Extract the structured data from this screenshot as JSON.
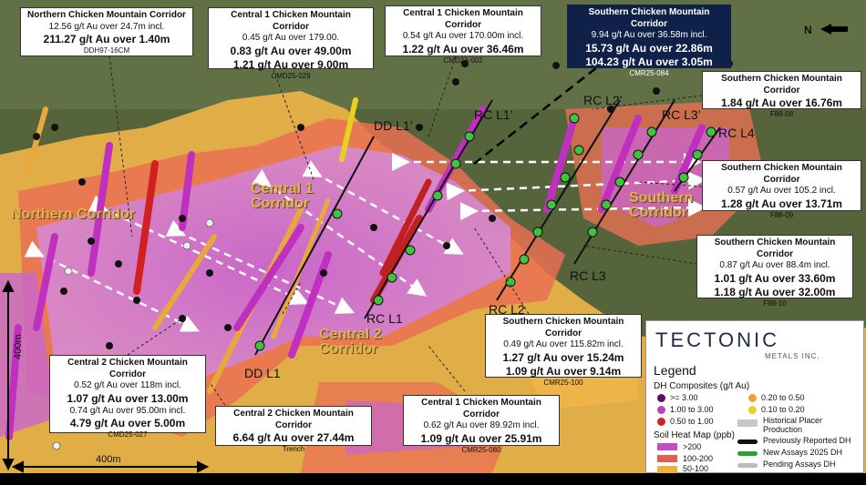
{
  "map": {
    "north_label": "N",
    "scale_vertical_label": "400m",
    "scale_horizontal_label": "400m"
  },
  "zones": {
    "northern": "Northern Corridor",
    "central1": "Central 1 Corridor",
    "central2": "Central 2 Corridor",
    "southern": "Southern Corridor"
  },
  "lines": {
    "dd_l1": "DD L1",
    "dd_l1p": "DD L1’",
    "rc_l1": "RC L1",
    "rc_l1p": "RC L1’",
    "rc_l2": "RC L2",
    "rc_l2p": "RC L2’",
    "rc_l3": "RC L3",
    "rc_l3p": "RC L3’",
    "rc_l4": "RC L4"
  },
  "callouts": {
    "c1": {
      "title": "Northern Chicken Mountain Corridor",
      "l1": "12.56 g/t Au over 24.7m incl.",
      "l2": "211.27 g/t Au over 1.40m",
      "id": "DDH97-16CM"
    },
    "c2": {
      "title": "Central 1 Chicken Mountain Corridor",
      "l1": "0.45 g/t Au over 179.00.",
      "l2": "0.83 g/t Au over 49.00m",
      "l3": "1.21 g/t Au over 9.00m",
      "id": "CMD25-029"
    },
    "c3": {
      "title": "Central 1 Chicken Mountain Corridor",
      "l1": "0.54 g/t Au over 170.00m incl.",
      "l2": "1.22 g/t Au over 36.46m",
      "id": "CMD23-002"
    },
    "c4": {
      "title": "Southern Chicken Mountain Corridor",
      "l1": "9.94 g/t Au over 36.58m incl.",
      "l2": "15.73 g/t Au over 22.86m",
      "l3": "104.23 g/t Au over 3.05m",
      "id": "CMR25-084"
    },
    "c5": {
      "title": "Southern Chicken Mountain Corridor",
      "l1": "1.84 g/t Au over 16.76m",
      "id": "F88-08"
    },
    "c6": {
      "title": "Southern Chicken Mountain Corridor",
      "l1": "0.57 g/t Au over 105.2 incl.",
      "l2": "1.28 g/t Au over 13.71m",
      "id": "F88-09"
    },
    "c7": {
      "title": "Southern Chicken Mountain Corridor",
      "l1": "0.87 g/t Au over 88.4m incl.",
      "l2": "1.01 g/t Au over 33.60m",
      "l3": "1.18 g/t Au over 32.00m",
      "id": "F88-10"
    },
    "c8": {
      "title": "Southern Chicken Mountain Corridor",
      "l1": "0.49 g/t Au over 115.82m incl.",
      "l2": "1.27 g/t Au over 15.24m",
      "l3": "1.09 g/t Au over 9.14m",
      "id": "CMR25-100"
    },
    "c9": {
      "title": "Central 2 Chicken Mountain Corridor",
      "l1": "0.52 g/t Au over 118m incl.",
      "l2": "1.07 g/t Au over 13.00m",
      "l3": "0.74 g/t Au over 95.00m incl.",
      "l4": "4.79 g/t Au over 5.00m",
      "id": "CMD25-027"
    },
    "c10": {
      "title": "Central 2 Chicken Mountain Corridor",
      "l1": "6.64 g/t Au over 27.44m",
      "id": "Trench"
    },
    "c11": {
      "title": "Central 1 Chicken Mountain Corridor",
      "l1": "0.62 g/t Au over 89.92m incl.",
      "l2": "1.09 g/t Au over 25.91m",
      "id": "CMR25-080"
    }
  },
  "legend": {
    "logo": "TECTONIC",
    "logo_sub": "METALS INC.",
    "title": "Legend",
    "dh_title": "DH Composites (g/t Au)",
    "dh": [
      {
        "label": ">= 3.00",
        "color": "#5a1060"
      },
      {
        "label": "0.20 to 0.50",
        "color": "#f0a030"
      },
      {
        "label": "1.00 to 3.00",
        "color": "#c040c0"
      },
      {
        "label": "0.10 to 0.20",
        "color": "#e8d020"
      },
      {
        "label": "0.50 to 1.00",
        "color": "#d02020"
      }
    ],
    "historical_placer": "Historical Placer Production",
    "soil_title": "Soil Heat Map (ppb)",
    "soil": [
      {
        "label": ">200",
        "color": "#c050c0"
      },
      {
        "label": "100-200",
        "color": "#e06050"
      },
      {
        "label": "50-100",
        "color": "#f0b040"
      }
    ],
    "dh_types": [
      {
        "label": "Previously Reported DH",
        "color": "#111111"
      },
      {
        "label": "New Assays 2025 DH",
        "color": "#2fa02f"
      },
      {
        "label": "Pending Assays DH",
        "color": "#bbbbbb"
      }
    ]
  }
}
